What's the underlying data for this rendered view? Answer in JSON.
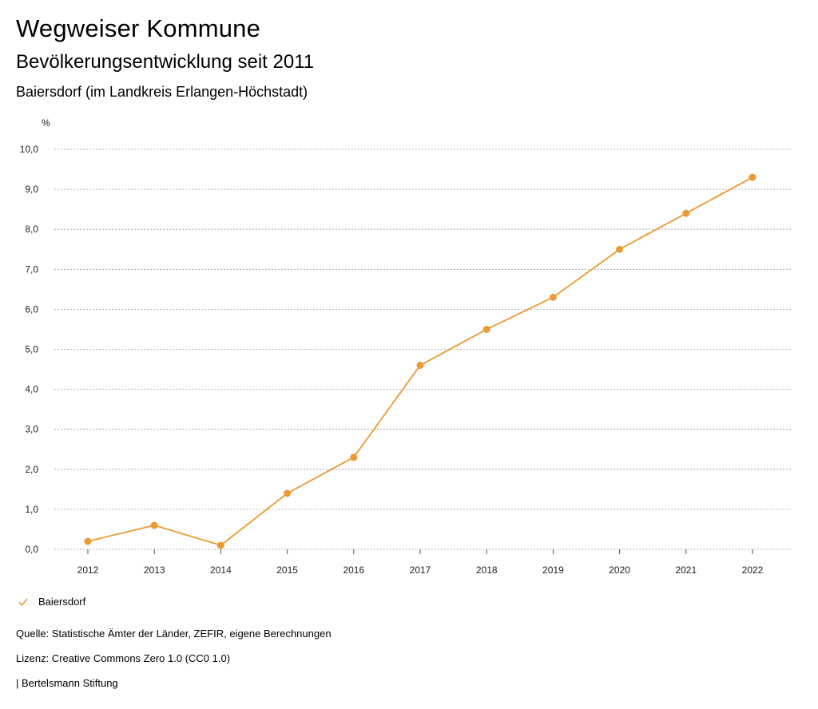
{
  "header": {
    "title": "Wegweiser Kommune",
    "subtitle": "Bevölkerungsentwicklung seit 2011",
    "region": "Baiersdorf (im Landkreis Erlangen-Höchstadt)"
  },
  "chart_data": {
    "type": "line",
    "title": "Bevölkerungsentwicklung seit 2011",
    "ylabel": "%",
    "xlabel": "",
    "ylim": [
      0,
      10
    ],
    "yticks": [
      "0,0",
      "1,0",
      "2,0",
      "3,0",
      "4,0",
      "5,0",
      "6,0",
      "7,0",
      "8,0",
      "9,0",
      "10,0"
    ],
    "categories": [
      "2012",
      "2013",
      "2014",
      "2015",
      "2016",
      "2017",
      "2018",
      "2019",
      "2020",
      "2021",
      "2022"
    ],
    "series": [
      {
        "name": "Baiersdorf",
        "color": "#EA9A32",
        "values": [
          0.2,
          0.6,
          0.1,
          1.4,
          2.3,
          4.6,
          5.5,
          6.3,
          7.5,
          8.4,
          9.3
        ]
      }
    ],
    "grid": true,
    "legend_position": "bottom-left"
  },
  "legend": {
    "label": "Baiersdorf",
    "icon": "check-icon",
    "color": "#EA9A32"
  },
  "footer": {
    "source": "Quelle: Statistische Ämter der Länder, ZEFIR, eigene Berechnungen",
    "license": "Lizenz: Creative Commons Zero 1.0 (CC0 1.0)",
    "publisher": "| Bertelsmann Stiftung"
  }
}
